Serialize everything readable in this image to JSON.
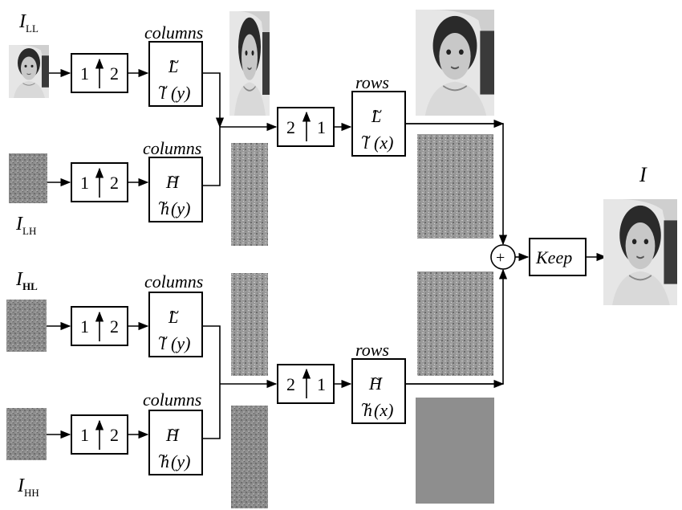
{
  "inputs": {
    "ll": {
      "main": "I",
      "sub": "LL"
    },
    "lh": {
      "main": "I",
      "sub": "LH"
    },
    "hl": {
      "main": "I",
      "sub": "HL"
    },
    "hh": {
      "main": "I",
      "sub": "HH"
    }
  },
  "stage1": {
    "upsample_left": "1",
    "upsample_right": "2",
    "caption": "columns",
    "low_filter": {
      "top": "L",
      "bottom": "l",
      "arg": "(y)"
    },
    "high_filter": {
      "top": "H",
      "bottom": "h",
      "arg": "(y)"
    }
  },
  "stage2": {
    "upsample_left": "2",
    "upsample_right": "1",
    "caption": "rows",
    "low_filter": {
      "top": "L",
      "bottom": "l",
      "arg": "(x)"
    },
    "high_filter": {
      "top": "H",
      "bottom": "h",
      "arg": "(x)"
    }
  },
  "adder_symbol": "+",
  "keep_label": "Keep",
  "output": {
    "main": "I"
  }
}
